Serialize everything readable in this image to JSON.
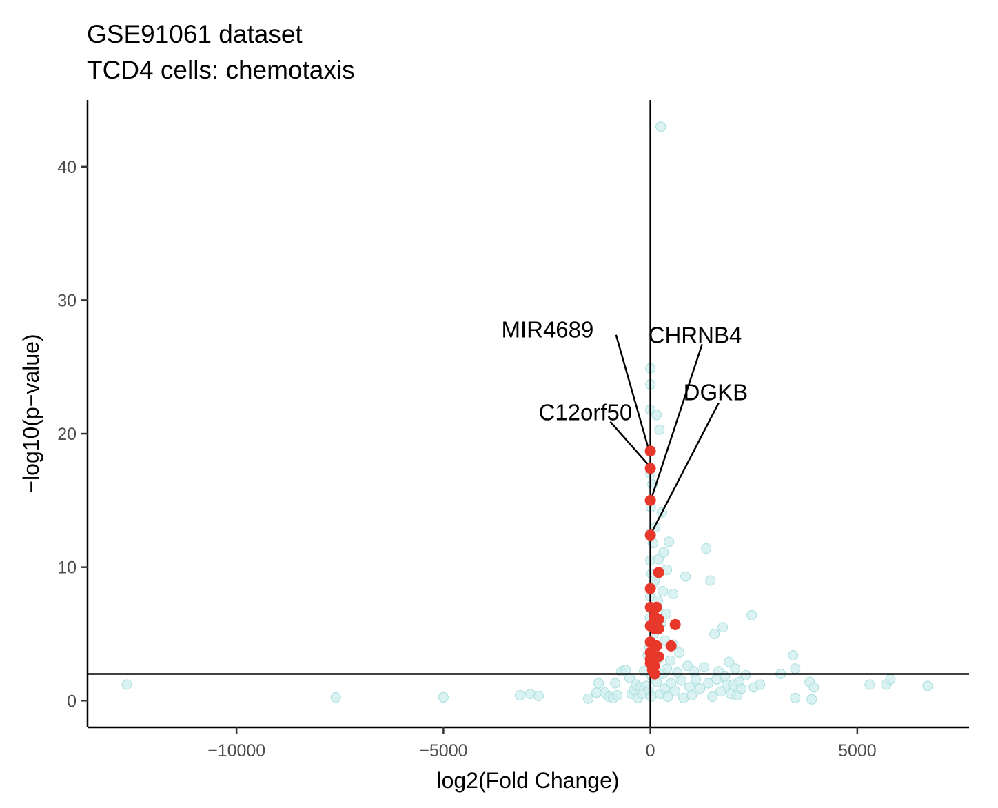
{
  "chart_data": {
    "type": "scatter",
    "title": [
      "GSE91061 dataset",
      "TCD4 cells: chemotaxis"
    ],
    "xlabel": "log2(Fold Change)",
    "ylabel": "−log10(p−value)",
    "xlim": [
      -13600,
      7700
    ],
    "ylim": [
      -2,
      45
    ],
    "xticks": [
      -10000,
      -5000,
      0,
      5000
    ],
    "xtick_labels": [
      "−10000",
      "−5000",
      "0",
      "5000"
    ],
    "yticks": [
      0,
      10,
      20,
      30,
      40
    ],
    "ytick_labels": [
      "0",
      "10",
      "20",
      "30",
      "40"
    ],
    "reference_lines": {
      "x": 0,
      "y": 2
    },
    "grid": false,
    "colors": {
      "background": "#cfeeee",
      "highlight": "#e8382b",
      "axis": "#000000"
    },
    "series": [
      {
        "role": "background genes",
        "points": [
          [
            -12650,
            1.2
          ],
          [
            -7600,
            0.25
          ],
          [
            -5000,
            0.25
          ],
          [
            -3150,
            0.4
          ],
          [
            -2900,
            0.5
          ],
          [
            -2700,
            0.35
          ],
          [
            -1500,
            0.15
          ],
          [
            -1300,
            0.6
          ],
          [
            -1250,
            1.3
          ],
          [
            -1100,
            0.6
          ],
          [
            -1000,
            0.3
          ],
          [
            -900,
            0.2
          ],
          [
            -850,
            1.3
          ],
          [
            -800,
            0.4
          ],
          [
            -700,
            2.2
          ],
          [
            -600,
            2.3
          ],
          [
            -500,
            1.7
          ],
          [
            -450,
            0.5
          ],
          [
            -400,
            0.8
          ],
          [
            -350,
            1.2
          ],
          [
            -300,
            0.2
          ],
          [
            -250,
            1.0
          ],
          [
            -200,
            0.5
          ],
          [
            -150,
            2.2
          ],
          [
            -100,
            1.1
          ],
          [
            -60,
            3.4
          ],
          [
            -40,
            0.7
          ],
          [
            -20,
            4.0
          ],
          [
            -10,
            6.2
          ],
          [
            0,
            7.8
          ],
          [
            0,
            10.5
          ],
          [
            0,
            12.5
          ],
          [
            0,
            17.0
          ],
          [
            0,
            21.8
          ],
          [
            0,
            23.7
          ],
          [
            0,
            24.9
          ],
          [
            10,
            14.5
          ],
          [
            20,
            0.3
          ],
          [
            30,
            9.5
          ],
          [
            40,
            1.8
          ],
          [
            50,
            16.2
          ],
          [
            60,
            11.8
          ],
          [
            80,
            5.0
          ],
          [
            80,
            8.8
          ],
          [
            100,
            2.6
          ],
          [
            100,
            9.0
          ],
          [
            120,
            13.0
          ],
          [
            150,
            1.4
          ],
          [
            150,
            21.4
          ],
          [
            180,
            7.5
          ],
          [
            200,
            3.2
          ],
          [
            200,
            10.6
          ],
          [
            220,
            20.3
          ],
          [
            240,
            0.5
          ],
          [
            250,
            43.0
          ],
          [
            260,
            5.8
          ],
          [
            280,
            14.1
          ],
          [
            300,
            2.0
          ],
          [
            300,
            8.2
          ],
          [
            320,
            11.1
          ],
          [
            350,
            0.9
          ],
          [
            350,
            4.5
          ],
          [
            380,
            6.5
          ],
          [
            400,
            2.4
          ],
          [
            400,
            9.8
          ],
          [
            420,
            0.3
          ],
          [
            450,
            11.9
          ],
          [
            480,
            3.0
          ],
          [
            500,
            1.3
          ],
          [
            550,
            4.2
          ],
          [
            550,
            8.0
          ],
          [
            600,
            0.7
          ],
          [
            650,
            2.1
          ],
          [
            700,
            3.6
          ],
          [
            750,
            1.5
          ],
          [
            800,
            0.2
          ],
          [
            850,
            9.3
          ],
          [
            900,
            2.6
          ],
          [
            950,
            1.0
          ],
          [
            1000,
            0.4
          ],
          [
            1050,
            2.2
          ],
          [
            1100,
            1.6
          ],
          [
            1200,
            0.9
          ],
          [
            1300,
            2.5
          ],
          [
            1350,
            11.4
          ],
          [
            1400,
            1.3
          ],
          [
            1450,
            9.0
          ],
          [
            1500,
            0.3
          ],
          [
            1550,
            5.0
          ],
          [
            1600,
            1.6
          ],
          [
            1650,
            2.2
          ],
          [
            1700,
            0.7
          ],
          [
            1750,
            5.5
          ],
          [
            1800,
            1.8
          ],
          [
            1850,
            1.2
          ],
          [
            1900,
            2.9
          ],
          [
            1950,
            0.5
          ],
          [
            2000,
            1.2
          ],
          [
            2050,
            2.4
          ],
          [
            2100,
            0.4
          ],
          [
            2150,
            1.4
          ],
          [
            2200,
            0.9
          ],
          [
            2300,
            1.9
          ],
          [
            2450,
            6.4
          ],
          [
            2500,
            1.0
          ],
          [
            2650,
            1.2
          ],
          [
            3150,
            2.0
          ],
          [
            3450,
            3.4
          ],
          [
            3500,
            2.4
          ],
          [
            3500,
            0.2
          ],
          [
            3850,
            1.4
          ],
          [
            3900,
            0.1
          ],
          [
            3950,
            1.0
          ],
          [
            5300,
            1.2
          ],
          [
            5700,
            1.2
          ],
          [
            5800,
            1.6
          ],
          [
            6700,
            1.1
          ]
        ]
      },
      {
        "role": "chemotaxis genes",
        "points": [
          [
            0,
            18.7
          ],
          [
            0,
            17.4
          ],
          [
            0,
            15.0
          ],
          [
            0,
            12.4
          ],
          [
            200,
            9.6
          ],
          [
            0,
            8.4
          ],
          [
            0,
            7.0
          ],
          [
            150,
            7.0
          ],
          [
            100,
            6.3
          ],
          [
            200,
            6.1
          ],
          [
            0,
            5.6
          ],
          [
            100,
            5.4
          ],
          [
            200,
            5.4
          ],
          [
            600,
            5.7
          ],
          [
            0,
            4.4
          ],
          [
            0,
            3.6
          ],
          [
            150,
            4.1
          ],
          [
            500,
            4.1
          ],
          [
            200,
            3.3
          ],
          [
            0,
            2.8
          ],
          [
            100,
            2.6
          ],
          [
            50,
            2.3
          ],
          [
            100,
            2.0
          ],
          [
            0,
            3.1
          ]
        ]
      }
    ],
    "annotations": [
      {
        "text": "MIR4689",
        "label_x": -3600,
        "label_y": 27.2,
        "line_from": [
          -830,
          27.4
        ],
        "line_to": [
          -30,
          18.7
        ]
      },
      {
        "text": "CHRNB4",
        "label_x": -50,
        "label_y": 26.8,
        "line_from": [
          1250,
          26.7
        ],
        "line_to": [
          30,
          15.2
        ]
      },
      {
        "text": "C12orf50",
        "label_x": -2700,
        "label_y": 21.0,
        "line_from": [
          -970,
          20.9
        ],
        "line_to": [
          -30,
          17.6
        ]
      },
      {
        "text": "DGKB",
        "label_x": 800,
        "label_y": 22.5,
        "line_from": [
          1650,
          22.3
        ],
        "line_to": [
          30,
          12.6
        ]
      }
    ]
  }
}
